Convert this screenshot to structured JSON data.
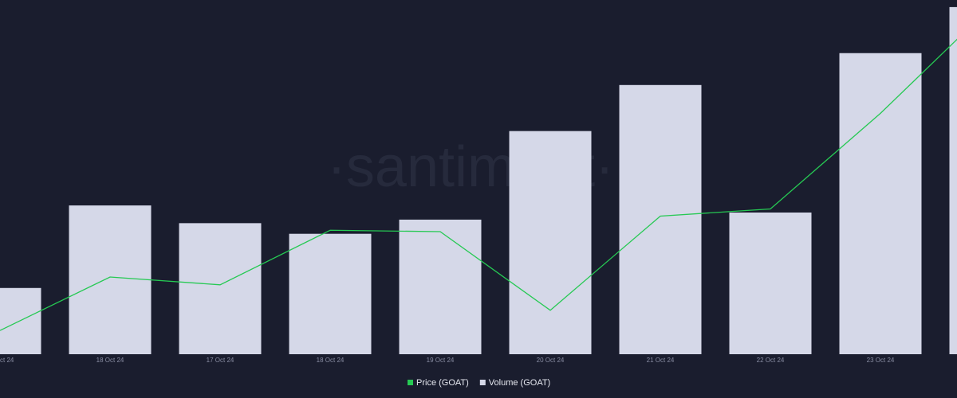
{
  "chart_data": {
    "type": "bar",
    "watermark": "·santiment·",
    "categories": [
      "ct 24",
      "18 Oct 24",
      "17 Oct 24",
      "18 Oct 24",
      "19 Oct 24",
      "20 Oct 24",
      "21 Oct 24",
      "22 Oct 24",
      "23 Oct 24",
      null
    ],
    "series": [
      {
        "name": "Price (GOAT)",
        "color": "#26c953",
        "axis": "y2",
        "values": [
          6.7,
          21.8,
          19.6,
          35,
          34.6,
          12.4,
          39,
          41,
          68,
          98
        ]
      },
      {
        "name": "Volume (GOAT)",
        "color": "#d5d8e8",
        "values": [
          18.7,
          42,
          37,
          34,
          38,
          63,
          76,
          40,
          85,
          98
        ]
      }
    ],
    "ylim": [
      0,
      100
    ],
    "y2lim": [
      0,
      100
    ]
  }
}
